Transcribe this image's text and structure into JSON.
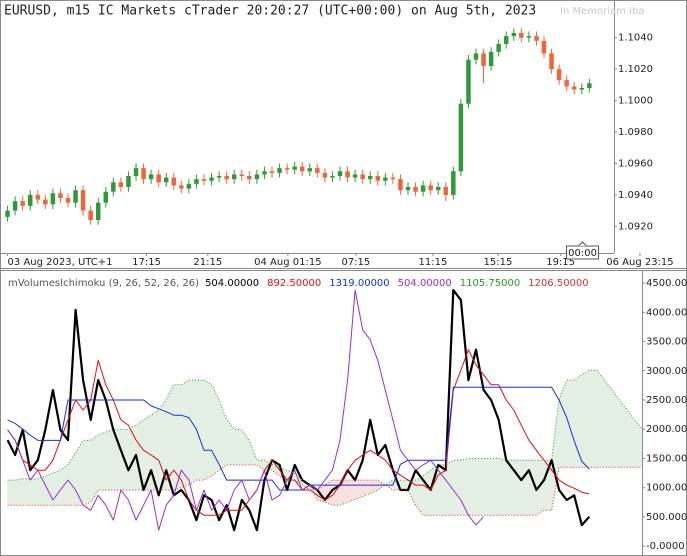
{
  "chart_data": [
    {
      "type": "candlestick",
      "title": "EURUSD, m15 IC Markets cTrader 20:20:27 (UTC+00:00) on Aug 5th, 2023",
      "watermark": "In Memoriam Iba",
      "up_color": "#2f9a3a",
      "down_color": "#f0643a",
      "xlim": [
        -1,
        80
      ],
      "xticks": [
        {
          "value": 0,
          "label": "03 Aug 2023, UTC+1"
        },
        {
          "value": 18.4,
          "label": "17:15"
        },
        {
          "value": 26.5,
          "label": "21:15"
        },
        {
          "value": 37.1,
          "label": "04 Aug 01:15"
        },
        {
          "value": 46.1,
          "label": "07:15"
        },
        {
          "value": 56.3,
          "label": "11:15"
        },
        {
          "value": 64.9,
          "label": "15:15"
        },
        {
          "value": 73.2,
          "label": "19:15"
        },
        {
          "value": 83.7,
          "label": "06 Aug 23:15"
        }
      ],
      "x_marker": {
        "value": 76.1,
        "label": "00:00"
      },
      "ylim": [
        1.0903,
        1.1064
      ],
      "yticks": [
        {
          "value": 1.092,
          "label": "1.0920"
        },
        {
          "value": 1.094,
          "label": "1.0940"
        },
        {
          "value": 1.096,
          "label": "1.0960"
        },
        {
          "value": 1.098,
          "label": "1.0980"
        },
        {
          "value": 1.1,
          "label": "1.1000"
        },
        {
          "value": 1.102,
          "label": "1.1020"
        },
        {
          "value": 1.104,
          "label": "1.1040"
        }
      ],
      "open": [
        1.0926,
        1.093,
        1.0936,
        1.0933,
        1.094,
        1.0937,
        1.0934,
        1.0941,
        1.0938,
        1.0935,
        1.0943,
        1.093,
        1.0924,
        1.0935,
        1.0942,
        1.0948,
        1.0945,
        1.0952,
        1.0957,
        1.095,
        1.0953,
        1.0948,
        1.0951,
        1.0946,
        1.0944,
        1.0947,
        1.095,
        1.0949,
        1.0951,
        1.0952,
        1.095,
        1.0953,
        1.0952,
        1.095,
        1.0953,
        1.0955,
        1.0954,
        1.0957,
        1.0956,
        1.0958,
        1.0955,
        1.0957,
        1.0954,
        1.0951,
        1.0952,
        1.0955,
        1.0951,
        1.0953,
        1.095,
        1.0952,
        1.0949,
        1.0951,
        1.095,
        1.0943,
        1.0945,
        1.0942,
        1.0946,
        1.0943,
        1.0945,
        1.094,
        1.0955,
        1.0998,
        1.1026,
        1.103,
        1.1022,
        1.1031,
        1.1036,
        1.1041,
        1.1043,
        1.104,
        1.1041,
        1.1038,
        1.103,
        1.102,
        1.1013,
        1.1009,
        1.1007,
        1.1008
      ],
      "high": [
        1.0933,
        1.0939,
        1.0939,
        1.0943,
        1.0943,
        1.094,
        1.0944,
        1.0944,
        1.0941,
        1.0946,
        1.0946,
        1.0933,
        1.0938,
        1.0945,
        1.0951,
        1.0951,
        1.0955,
        1.096,
        1.096,
        1.0956,
        1.0956,
        1.0954,
        1.0954,
        1.0949,
        1.095,
        1.0953,
        1.0953,
        1.0954,
        1.0955,
        1.0955,
        1.0956,
        1.0956,
        1.0955,
        1.0956,
        1.0958,
        1.0958,
        1.096,
        1.096,
        1.0961,
        1.0961,
        1.096,
        1.096,
        1.0957,
        1.0955,
        1.0958,
        1.0958,
        1.0956,
        1.0956,
        1.0955,
        1.0955,
        1.0954,
        1.0954,
        1.0953,
        1.0948,
        1.0948,
        1.0949,
        1.0949,
        1.0948,
        1.0948,
        1.0958,
        1.1001,
        1.1029,
        1.1033,
        1.1033,
        1.1034,
        1.1039,
        1.1044,
        1.1046,
        1.1046,
        1.1044,
        1.1044,
        1.1041,
        1.1033,
        1.1023,
        1.1016,
        1.1012,
        1.1011,
        1.1014
      ],
      "low": [
        1.0923,
        1.0927,
        1.093,
        1.093,
        1.0934,
        1.0931,
        1.0931,
        1.0935,
        1.0932,
        1.0932,
        1.0927,
        1.0921,
        1.0921,
        1.0932,
        1.0939,
        1.0942,
        1.0942,
        1.0949,
        1.0947,
        1.0947,
        1.0945,
        1.0945,
        1.0943,
        1.0941,
        1.0941,
        1.0944,
        1.0946,
        1.0946,
        1.0948,
        1.0947,
        1.0947,
        1.0949,
        1.0947,
        1.0947,
        1.095,
        1.0951,
        1.0951,
        1.0953,
        1.0953,
        1.0952,
        1.0952,
        1.0951,
        1.0948,
        1.0948,
        1.0949,
        1.0948,
        1.0948,
        1.0947,
        1.0947,
        1.0946,
        1.0946,
        1.0947,
        1.094,
        1.094,
        1.0939,
        1.0939,
        1.094,
        1.094,
        1.0936,
        1.0937,
        1.0952,
        1.0995,
        1.1023,
        1.1011,
        1.1019,
        1.1028,
        1.1033,
        1.1038,
        1.1037,
        1.1037,
        1.1035,
        1.1027,
        1.1017,
        1.101,
        1.1006,
        1.1004,
        1.1004,
        1.1005
      ],
      "close": [
        1.093,
        1.0936,
        1.0933,
        1.094,
        1.0937,
        1.0934,
        1.0941,
        1.0938,
        1.0935,
        1.0943,
        1.093,
        1.0924,
        1.0935,
        1.0942,
        1.0948,
        1.0945,
        1.0952,
        1.0957,
        1.095,
        1.0953,
        1.0948,
        1.0951,
        1.0946,
        1.0944,
        1.0947,
        1.095,
        1.0949,
        1.0951,
        1.0952,
        1.095,
        1.0953,
        1.0952,
        1.095,
        1.0953,
        1.0955,
        1.0954,
        1.0957,
        1.0956,
        1.0958,
        1.0955,
        1.0957,
        1.0954,
        1.0951,
        1.0952,
        1.0955,
        1.0951,
        1.0953,
        1.095,
        1.0952,
        1.0949,
        1.0951,
        1.095,
        1.0943,
        1.0945,
        1.0942,
        1.0946,
        1.0943,
        1.0945,
        1.094,
        1.0955,
        1.0998,
        1.1026,
        1.103,
        1.1022,
        1.1031,
        1.1036,
        1.1041,
        1.1043,
        1.104,
        1.1041,
        1.1038,
        1.103,
        1.102,
        1.1013,
        1.1009,
        1.1007,
        1.1008,
        1.1011
      ]
    },
    {
      "type": "line",
      "title": "mVolumesIchimoku (9, 26, 52, 26, 26)",
      "xlim": [
        -1,
        80
      ],
      "ylim": [
        -100,
        4690
      ],
      "yticks": [
        {
          "value": 0,
          "label": "-0.0000"
        },
        {
          "value": 500,
          "label": "500.0000"
        },
        {
          "value": 1000,
          "label": "1000.0000"
        },
        {
          "value": 1500,
          "label": "1500.0000"
        },
        {
          "value": 2000,
          "label": "2000.0000"
        },
        {
          "value": 2500,
          "label": "2500.0000"
        },
        {
          "value": 3000,
          "label": "3000.0000"
        },
        {
          "value": 3500,
          "label": "3500.0000"
        },
        {
          "value": 4000,
          "label": "4000.0000"
        },
        {
          "value": 4500,
          "label": "4500.0000"
        }
      ],
      "series": [
        {
          "color": "#000000",
          "style": "thick",
          "label": "504.00000",
          "values": [
            1815,
            1560,
            1990,
            1300,
            1470,
            1990,
            2670,
            1990,
            1815,
            4040,
            2840,
            2160,
            2840,
            2500,
            1990,
            1640,
            1300,
            1560,
            960,
            1300,
            870,
            1300,
            870,
            960,
            790,
            445,
            870,
            790,
            445,
            700,
            275,
            790,
            615,
            275,
            1130,
            1470,
            1390,
            960,
            1390,
            1130,
            1045,
            960,
            790,
            960,
            1045,
            1300,
            1130,
            1470,
            2160,
            1560,
            1730,
            1300,
            960,
            960,
            1300,
            1130,
            960,
            1390,
            1300,
            4380,
            4210,
            2840,
            3360,
            2670,
            2500,
            2160,
            1470,
            1300,
            1130,
            1300,
            960,
            1130,
            1470,
            960,
            790,
            870,
            360,
            504
          ]
        },
        {
          "color": "#e01010",
          "style": "solid",
          "label": "892.50000",
          "values": [
            1990,
            1815,
            1470,
            1390,
            1300,
            1300,
            1470,
            1815,
            2160,
            2500,
            2330,
            2500,
            3180,
            2760,
            2500,
            2160,
            2070,
            1815,
            1640,
            1560,
            1470,
            1130,
            1300,
            1130,
            790,
            615,
            530,
            530,
            530,
            615,
            615,
            615,
            790,
            960,
            1300,
            1470,
            1300,
            1130,
            1130,
            960,
            960,
            870,
            790,
            870,
            1045,
            1300,
            1470,
            1560,
            1640,
            1560,
            1470,
            1300,
            1215,
            1130,
            1045,
            1045,
            960,
            1215,
            1300,
            2670,
            3010,
            3360,
            3100,
            2930,
            2760,
            2760,
            2500,
            2330,
            2070,
            1815,
            1640,
            1470,
            1300,
            1130,
            1045,
            990,
            925,
            892.5
          ]
        },
        {
          "color": "#1030e8",
          "style": "solid",
          "label": "1319.00000",
          "values": [
            2160,
            2100,
            2000,
            1900,
            1810,
            1810,
            1810,
            1810,
            2500,
            2500,
            2500,
            2500,
            2500,
            2500,
            2500,
            2500,
            2500,
            2500,
            2500,
            2400,
            2350,
            2300,
            2240,
            2240,
            2200,
            2000,
            1640,
            1640,
            1400,
            1130,
            1130,
            1130,
            1130,
            1130,
            1130,
            1130,
            960,
            960,
            960,
            960,
            1045,
            1045,
            1045,
            1045,
            1045,
            1045,
            1045,
            1045,
            1045,
            1045,
            1045,
            1045,
            1400,
            1470,
            1470,
            1470,
            1470,
            1470,
            1470,
            2720,
            2720,
            2720,
            2720,
            2720,
            2720,
            2720,
            2720,
            2720,
            2720,
            2720,
            2720,
            2720,
            2720,
            2500,
            2200,
            1800,
            1450,
            1319
          ]
        },
        {
          "color": "#9a2ed0",
          "style": "solid",
          "label": "504.00000",
          "values": [
            1990,
            1815,
            1470,
            1130,
            1300,
            1045,
            790,
            960,
            1130,
            960,
            700,
            615,
            870,
            700,
            445,
            960,
            790,
            445,
            700,
            960,
            275,
            700,
            870,
            1300,
            1130,
            615,
            960,
            615,
            790,
            615,
            960,
            1130,
            790,
            960,
            1300,
            790,
            870,
            1130,
            1300,
            960,
            1045,
            960,
            1130,
            1300,
            1815,
            2840,
            4380,
            3700,
            3530,
            3180,
            2670,
            2160,
            1640,
            1470,
            1300,
            1390,
            1470,
            1300,
            1130,
            960,
            790,
            530,
            360,
            504,
            null,
            null,
            null,
            null,
            null,
            null,
            null,
            null,
            null,
            null,
            null,
            null,
            null,
            null
          ]
        },
        {
          "color": "#2a9a2a",
          "style": "dotted",
          "cloud_color": "#e3f0e3",
          "label": "1105.75000",
          "values": [
            1130,
            1130,
            1150,
            1150,
            1150,
            1200,
            1250,
            1300,
            1400,
            1600,
            1800,
            1815,
            1900,
            1950,
            2000,
            2000,
            2000,
            2070,
            2160,
            2240,
            2330,
            2500,
            2760,
            2760,
            2840,
            2840,
            2840,
            2760,
            2500,
            2160,
            2000,
            1990,
            1800,
            1470,
            1470,
            1400,
            1350,
            1300,
            1250,
            1130,
            1050,
            790,
            750,
            700,
            700,
            750,
            800,
            850,
            900,
            960,
            1050,
            1130,
            1130,
            1130,
            1130,
            1200,
            1300,
            1390,
            1390,
            1470,
            1470,
            1500,
            1500,
            1500,
            1500,
            1500,
            1470,
            1470,
            1470,
            1470,
            1470,
            1470,
            1470,
            2500,
            2840,
            2840,
            2930,
            3010,
            3010,
            2840,
            2670,
            2500,
            2330,
            2160,
            2000
          ]
        },
        {
          "color": "#e03030",
          "style": "dotted",
          "cloud_color": "#fbe0e0",
          "label": "1206.50000",
          "values": [
            700,
            700,
            700,
            700,
            700,
            700,
            700,
            700,
            700,
            700,
            700,
            750,
            960,
            960,
            960,
            960,
            960,
            960,
            960,
            960,
            960,
            960,
            960,
            1000,
            1050,
            1130,
            1130,
            1200,
            1300,
            1390,
            1390,
            1390,
            1390,
            1390,
            1300,
            1300,
            1200,
            1130,
            1130,
            1050,
            960,
            960,
            1050,
            1130,
            1130,
            1130,
            1130,
            1130,
            1130,
            1130,
            1050,
            960,
            960,
            960,
            700,
            530,
            530,
            530,
            530,
            530,
            530,
            530,
            530,
            530,
            530,
            530,
            530,
            530,
            530,
            530,
            530,
            615,
            615,
            1350,
            1350,
            1350,
            1350,
            1350,
            1350,
            1350,
            1350,
            1350,
            1350,
            1350,
            1350
          ]
        }
      ]
    }
  ]
}
